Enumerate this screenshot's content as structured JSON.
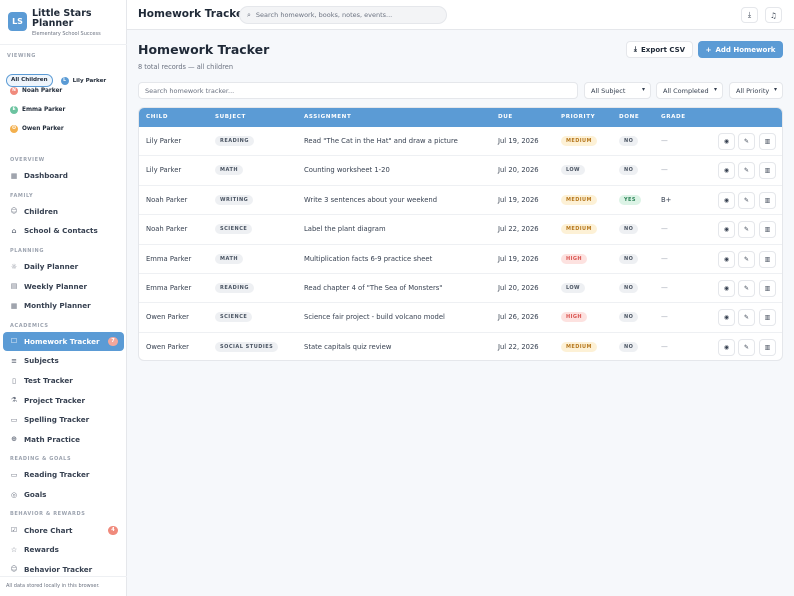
{
  "sidebar": {
    "logo_initials": "LS",
    "app_title": "Little Stars Planner",
    "app_subtitle": "Elementary School Success",
    "viewing_label": "VIEWING",
    "all_children_label": "All Children",
    "children": [
      {
        "name": "Lily Parker",
        "initial": "L",
        "color": "#5b9bd5"
      },
      {
        "name": "Noah Parker",
        "initial": "N",
        "color": "#f08a7c"
      },
      {
        "name": "Emma Parker",
        "initial": "E",
        "color": "#6cc3a0"
      },
      {
        "name": "Owen Parker",
        "initial": "O",
        "color": "#f3b04e"
      }
    ],
    "nav": [
      {
        "section": "OVERVIEW",
        "items": [
          {
            "label": "Dashboard",
            "icon": "grid-icon"
          }
        ]
      },
      {
        "section": "FAMILY",
        "items": [
          {
            "label": "Children",
            "icon": "child-icon"
          },
          {
            "label": "School & Contacts",
            "icon": "school-icon"
          }
        ]
      },
      {
        "section": "PLANNING",
        "items": [
          {
            "label": "Daily Planner",
            "icon": "sun-icon"
          },
          {
            "label": "Weekly Planner",
            "icon": "calendar-icon"
          },
          {
            "label": "Monthly Planner",
            "icon": "calendar-month-icon"
          }
        ]
      },
      {
        "section": "ACADEMICS",
        "items": [
          {
            "label": "Homework Tracker",
            "icon": "clipboard-icon",
            "active": true,
            "badge": "7"
          },
          {
            "label": "Subjects",
            "icon": "layers-icon"
          },
          {
            "label": "Test Tracker",
            "icon": "file-icon"
          },
          {
            "label": "Project Tracker",
            "icon": "flask-icon"
          },
          {
            "label": "Spelling Tracker",
            "icon": "spell-icon"
          },
          {
            "label": "Math Practice",
            "icon": "math-icon"
          }
        ]
      },
      {
        "section": "READING & GOALS",
        "items": [
          {
            "label": "Reading Tracker",
            "icon": "book-icon"
          },
          {
            "label": "Goals",
            "icon": "target-icon"
          }
        ]
      },
      {
        "section": "BEHAVIOR & REWARDS",
        "items": [
          {
            "label": "Chore Chart",
            "icon": "checkbox-icon",
            "badge": "4"
          },
          {
            "label": "Rewards",
            "icon": "star-icon"
          },
          {
            "label": "Behavior Tracker",
            "icon": "smile-icon"
          }
        ]
      }
    ],
    "footer": "All data stored locally in this browser."
  },
  "topbar": {
    "title": "Homework Tracker",
    "search_placeholder": "Search homework, books, notes, events...",
    "download_icon": "download-icon",
    "bell_icon": "bell-icon"
  },
  "main": {
    "title": "Homework Tracker",
    "subtitle": "8 total records — all children",
    "export_label": "Export CSV",
    "add_label": "Add Homework",
    "filter_placeholder": "Search homework tracker...",
    "filters": [
      "All Subject",
      "All Completed",
      "All Priority"
    ]
  },
  "table": {
    "columns": [
      "CHILD",
      "SUBJECT",
      "ASSIGNMENT",
      "DUE",
      "PRIORITY",
      "DONE",
      "GRADE"
    ],
    "rows": [
      {
        "child": "Lily Parker",
        "subject": "READING",
        "assignment": "Read \"The Cat in the Hat\" and draw a picture",
        "due": "Jul 19, 2026",
        "priority": "MEDIUM",
        "done": "NO",
        "grade": "—"
      },
      {
        "child": "Lily Parker",
        "subject": "MATH",
        "assignment": "Counting worksheet 1-20",
        "due": "Jul 20, 2026",
        "priority": "LOW",
        "done": "NO",
        "grade": "—"
      },
      {
        "child": "Noah Parker",
        "subject": "WRITING",
        "assignment": "Write 3 sentences about your weekend",
        "due": "Jul 19, 2026",
        "priority": "MEDIUM",
        "done": "YES",
        "grade": "B+"
      },
      {
        "child": "Noah Parker",
        "subject": "SCIENCE",
        "assignment": "Label the plant diagram",
        "due": "Jul 22, 2026",
        "priority": "MEDIUM",
        "done": "NO",
        "grade": "—"
      },
      {
        "child": "Emma Parker",
        "subject": "MATH",
        "assignment": "Multiplication facts 6-9 practice sheet",
        "due": "Jul 19, 2026",
        "priority": "HIGH",
        "done": "NO",
        "grade": "—"
      },
      {
        "child": "Emma Parker",
        "subject": "READING",
        "assignment": "Read chapter 4 of \"The Sea of Monsters\"",
        "due": "Jul 20, 2026",
        "priority": "LOW",
        "done": "NO",
        "grade": "—"
      },
      {
        "child": "Owen Parker",
        "subject": "SCIENCE",
        "assignment": "Science fair project - build volcano model",
        "due": "Jul 26, 2026",
        "priority": "HIGH",
        "done": "NO",
        "grade": "—"
      },
      {
        "child": "Owen Parker",
        "subject": "SOCIAL STUDIES",
        "assignment": "State capitals quiz review",
        "due": "Jul 22, 2026",
        "priority": "MEDIUM",
        "done": "NO",
        "grade": "—"
      }
    ]
  },
  "colors": {
    "accent": "#5b9bd5",
    "priority": {
      "HIGH": {
        "bg": "#fde2e0",
        "fg": "#d9534f"
      },
      "MEDIUM": {
        "bg": "#fdf1d6",
        "fg": "#b7791f"
      },
      "LOW": {
        "bg": "#eef0f3",
        "fg": "#4b5563"
      }
    },
    "done": {
      "YES": {
        "bg": "#dcf3e6",
        "fg": "#2f855a"
      },
      "NO": {
        "bg": "#eef0f3",
        "fg": "#4b5563"
      }
    }
  }
}
